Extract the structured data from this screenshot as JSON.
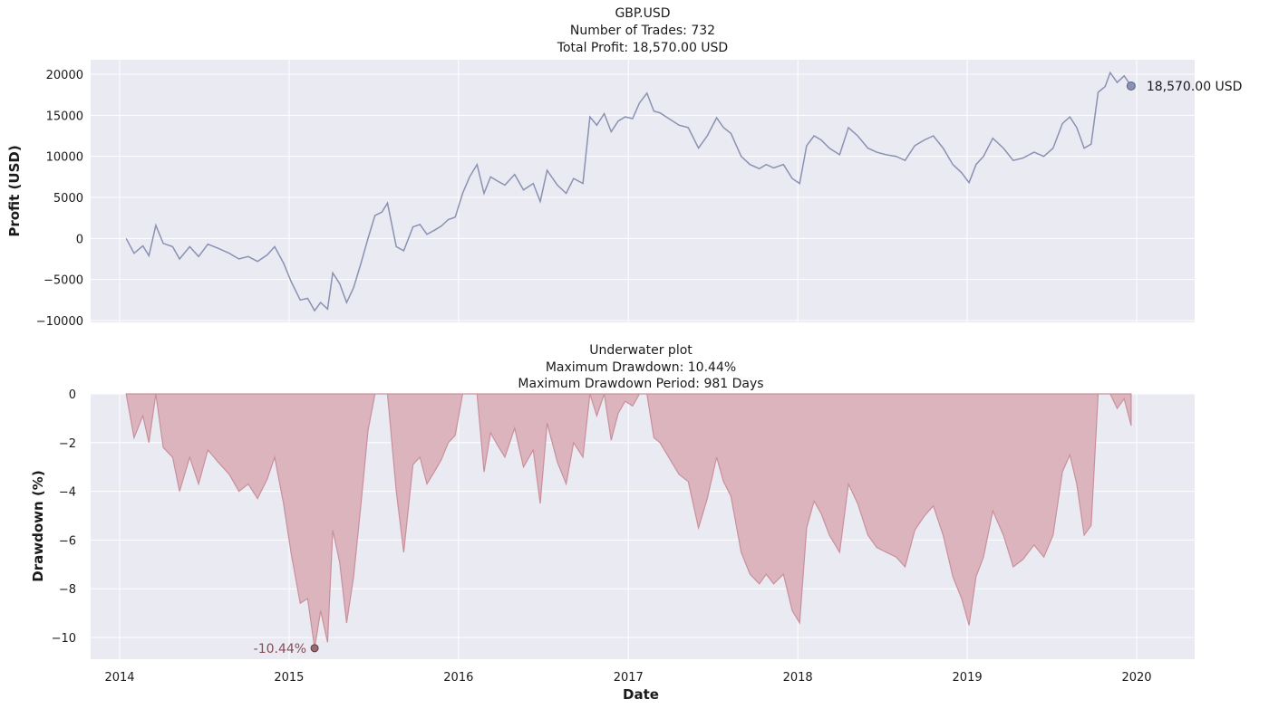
{
  "chart_data": [
    {
      "type": "line",
      "title": [
        "GBP.USD",
        "Number of Trades: 732",
        "Total Profit: 18,570.00 USD"
      ],
      "xlabel": "",
      "ylabel": "Profit (USD)",
      "ylim": [
        -10200,
        21000
      ],
      "yticks": [
        -10000,
        -5000,
        0,
        5000,
        10000,
        15000,
        20000
      ],
      "ytick_labels": [
        "−10000",
        "−5000",
        "0",
        "5000",
        "10000",
        "15000",
        "20000"
      ],
      "grid": true,
      "colors": {
        "line": "#8a92b3",
        "marker": "#8a92b3",
        "background": "#eaeaf2"
      },
      "series": [
        {
          "x": [
            "2014-01-15",
            "2014-02-01",
            "2014-02-20",
            "2014-03-05",
            "2014-03-20",
            "2014-04-05",
            "2014-04-25",
            "2014-05-10",
            "2014-06-01",
            "2014-06-20",
            "2014-07-10",
            "2014-08-01",
            "2014-08-25",
            "2014-09-15",
            "2014-10-05",
            "2014-10-25",
            "2014-11-15",
            "2014-12-01",
            "2014-12-20",
            "2015-01-05",
            "2015-01-25",
            "2015-02-10",
            "2015-02-25",
            "2015-03-10",
            "2015-03-25",
            "2015-04-05",
            "2015-04-20",
            "2015-05-05",
            "2015-05-20",
            "2015-06-05",
            "2015-06-20",
            "2015-07-05",
            "2015-07-20",
            "2015-08-01",
            "2015-08-20",
            "2015-09-05",
            "2015-09-25",
            "2015-10-10",
            "2015-10-25",
            "2015-11-10",
            "2015-11-25",
            "2015-12-10",
            "2015-12-25",
            "2016-01-10",
            "2016-01-25",
            "2016-02-10",
            "2016-02-25",
            "2016-03-10",
            "2016-03-25",
            "2016-04-10",
            "2016-05-01",
            "2016-05-20",
            "2016-06-10",
            "2016-06-25",
            "2016-07-10",
            "2016-08-01",
            "2016-08-20",
            "2016-09-05",
            "2016-09-25",
            "2016-10-10",
            "2016-10-25",
            "2016-11-10",
            "2016-11-25",
            "2016-12-10",
            "2016-12-25",
            "2017-01-10",
            "2017-01-25",
            "2017-02-10",
            "2017-02-25",
            "2017-03-10",
            "2017-04-01",
            "2017-04-20",
            "2017-05-10",
            "2017-06-01",
            "2017-06-20",
            "2017-07-10",
            "2017-07-25",
            "2017-08-10",
            "2017-09-01",
            "2017-09-20",
            "2017-10-10",
            "2017-10-25",
            "2017-11-10",
            "2017-12-01",
            "2017-12-20",
            "2018-01-05",
            "2018-01-20",
            "2018-02-05",
            "2018-02-20",
            "2018-03-10",
            "2018-04-01",
            "2018-04-20",
            "2018-05-10",
            "2018-06-01",
            "2018-06-20",
            "2018-07-10",
            "2018-08-01",
            "2018-08-20",
            "2018-09-10",
            "2018-10-01",
            "2018-10-20",
            "2018-11-10",
            "2018-12-01",
            "2018-12-20",
            "2019-01-05",
            "2019-01-20",
            "2019-02-05",
            "2019-02-25",
            "2019-03-20",
            "2019-04-10",
            "2019-05-01",
            "2019-05-25",
            "2019-06-15",
            "2019-07-05",
            "2019-07-25",
            "2019-08-10",
            "2019-08-25",
            "2019-09-10",
            "2019-09-25",
            "2019-10-10",
            "2019-10-25",
            "2019-11-05",
            "2019-11-20",
            "2019-12-05",
            "2019-12-20"
          ],
          "y": [
            0,
            -1800,
            -900,
            -2100,
            1600,
            -600,
            -1000,
            -2500,
            -1000,
            -2200,
            -700,
            -1200,
            -1800,
            -2500,
            -2200,
            -2800,
            -2000,
            -1000,
            -3000,
            -5200,
            -7500,
            -7300,
            -8800,
            -7800,
            -8600,
            -4200,
            -5500,
            -7800,
            -6000,
            -3000,
            0,
            2800,
            3200,
            4300,
            -1000,
            -1500,
            1400,
            1700,
            500,
            1000,
            1500,
            2300,
            2600,
            5500,
            7500,
            9000,
            5500,
            7500,
            7000,
            6500,
            7800,
            5900,
            6700,
            4500,
            8300,
            6500,
            5500,
            7300,
            6700,
            14800,
            13800,
            15200,
            13000,
            14300,
            14800,
            14600,
            16500,
            17700,
            15500,
            15300,
            14500,
            13800,
            13500,
            11000,
            12500,
            14700,
            13500,
            12800,
            10000,
            9000,
            8500,
            9000,
            8600,
            9000,
            7300,
            6700,
            11300,
            12500,
            12000,
            11000,
            10200,
            13500,
            12500,
            11000,
            10500,
            10200,
            10000,
            9500,
            11300,
            12000,
            12500,
            11000,
            9000,
            8000,
            6800,
            9000,
            10000,
            12200,
            11000,
            9500,
            9800,
            10500,
            10000,
            11000,
            14000,
            14800,
            13500,
            11000,
            11500,
            17800,
            18500,
            20200,
            19000,
            19800,
            18570
          ]
        }
      ],
      "annotation": {
        "text": "18,570.00 USD",
        "x": "2019-12-20",
        "y": 18570
      }
    },
    {
      "type": "area",
      "title": [
        "Underwater plot",
        "Maximum Drawdown: 10.44%",
        "Maximum Drawdown Period: 981 Days"
      ],
      "xlabel": "Date",
      "ylabel": "Drawdown (%)",
      "ylim": [
        -11,
        0
      ],
      "yticks": [
        -10,
        -8,
        -6,
        -4,
        -2,
        0
      ],
      "ytick_labels": [
        "−10",
        "−8",
        "−6",
        "−4",
        "−2",
        "0"
      ],
      "xticks": [
        "2014-01-01",
        "2015-01-01",
        "2016-01-01",
        "2017-01-01",
        "2018-01-01",
        "2019-01-01",
        "2020-01-01"
      ],
      "xtick_labels": [
        "2014",
        "2015",
        "2016",
        "2017",
        "2018",
        "2019",
        "2020"
      ],
      "grid": true,
      "colors": {
        "fill": "#dbb4bd",
        "line": "#c9909c",
        "marker": "#8a4a55",
        "annotation": "#8a4a55",
        "background": "#eaeaf2"
      },
      "series": [
        {
          "x": [
            "2014-01-15",
            "2014-02-01",
            "2014-02-20",
            "2014-03-05",
            "2014-03-20",
            "2014-04-05",
            "2014-04-25",
            "2014-05-10",
            "2014-06-01",
            "2014-06-20",
            "2014-07-10",
            "2014-08-01",
            "2014-08-25",
            "2014-09-15",
            "2014-10-05",
            "2014-10-25",
            "2014-11-15",
            "2014-12-01",
            "2014-12-20",
            "2015-01-05",
            "2015-01-25",
            "2015-02-10",
            "2015-02-25",
            "2015-03-10",
            "2015-03-25",
            "2015-04-05",
            "2015-04-20",
            "2015-05-05",
            "2015-05-20",
            "2015-06-05",
            "2015-06-20",
            "2015-07-05",
            "2015-07-20",
            "2015-08-01",
            "2015-08-20",
            "2015-09-05",
            "2015-09-25",
            "2015-10-10",
            "2015-10-25",
            "2015-11-10",
            "2015-11-25",
            "2015-12-10",
            "2015-12-25",
            "2016-01-10",
            "2016-01-25",
            "2016-02-10",
            "2016-02-25",
            "2016-03-10",
            "2016-03-25",
            "2016-04-10",
            "2016-05-01",
            "2016-05-20",
            "2016-06-10",
            "2016-06-25",
            "2016-07-10",
            "2016-08-01",
            "2016-08-20",
            "2016-09-05",
            "2016-09-25",
            "2016-10-10",
            "2016-10-25",
            "2016-11-10",
            "2016-11-25",
            "2016-12-10",
            "2016-12-25",
            "2017-01-10",
            "2017-01-25",
            "2017-02-10",
            "2017-02-25",
            "2017-03-10",
            "2017-04-01",
            "2017-04-20",
            "2017-05-10",
            "2017-06-01",
            "2017-06-20",
            "2017-07-10",
            "2017-07-25",
            "2017-08-10",
            "2017-09-01",
            "2017-09-20",
            "2017-10-10",
            "2017-10-25",
            "2017-11-10",
            "2017-12-01",
            "2017-12-20",
            "2018-01-05",
            "2018-01-20",
            "2018-02-05",
            "2018-02-20",
            "2018-03-10",
            "2018-04-01",
            "2018-04-20",
            "2018-05-10",
            "2018-06-01",
            "2018-06-20",
            "2018-07-10",
            "2018-08-01",
            "2018-08-20",
            "2018-09-10",
            "2018-10-01",
            "2018-10-20",
            "2018-11-10",
            "2018-12-01",
            "2018-12-20",
            "2019-01-05",
            "2019-01-20",
            "2019-02-05",
            "2019-02-25",
            "2019-03-20",
            "2019-04-10",
            "2019-05-01",
            "2019-05-25",
            "2019-06-15",
            "2019-07-05",
            "2019-07-25",
            "2019-08-10",
            "2019-08-25",
            "2019-09-10",
            "2019-09-25",
            "2019-10-10",
            "2019-10-25",
            "2019-11-05",
            "2019-11-20",
            "2019-12-05",
            "2019-12-20"
          ],
          "y": [
            0,
            -1.8,
            -0.9,
            -2.0,
            0,
            -2.2,
            -2.6,
            -4.0,
            -2.6,
            -3.7,
            -2.3,
            -2.8,
            -3.3,
            -4.0,
            -3.7,
            -4.3,
            -3.5,
            -2.6,
            -4.5,
            -6.5,
            -8.6,
            -8.4,
            -10.44,
            -8.9,
            -10.2,
            -5.6,
            -6.9,
            -9.4,
            -7.5,
            -4.5,
            -1.5,
            0,
            0,
            0,
            -4.0,
            -6.5,
            -2.9,
            -2.6,
            -3.7,
            -3.2,
            -2.7,
            -2.0,
            -1.7,
            0,
            0,
            0,
            -3.2,
            -1.6,
            -2.1,
            -2.6,
            -1.4,
            -3.0,
            -2.3,
            -4.5,
            -1.2,
            -2.8,
            -3.7,
            -2.0,
            -2.6,
            0,
            -0.9,
            0,
            -1.9,
            -0.8,
            -0.3,
            -0.5,
            0,
            0,
            -1.8,
            -2.0,
            -2.7,
            -3.3,
            -3.6,
            -5.5,
            -4.3,
            -2.6,
            -3.6,
            -4.2,
            -6.5,
            -7.4,
            -7.8,
            -7.4,
            -7.8,
            -7.4,
            -8.9,
            -9.4,
            -5.5,
            -4.4,
            -4.9,
            -5.8,
            -6.5,
            -3.7,
            -4.5,
            -5.8,
            -6.3,
            -6.5,
            -6.7,
            -7.1,
            -5.6,
            -5.0,
            -4.6,
            -5.8,
            -7.5,
            -8.4,
            -9.5,
            -7.5,
            -6.7,
            -4.8,
            -5.8,
            -7.1,
            -6.8,
            -6.2,
            -6.7,
            -5.8,
            -3.2,
            -2.5,
            -3.7,
            -5.8,
            -5.4,
            0,
            0,
            0,
            -0.6,
            -0.2,
            -1.3
          ]
        }
      ],
      "annotation": {
        "text": "-10.44%",
        "x": "2015-02-25",
        "y": -10.44
      }
    }
  ]
}
